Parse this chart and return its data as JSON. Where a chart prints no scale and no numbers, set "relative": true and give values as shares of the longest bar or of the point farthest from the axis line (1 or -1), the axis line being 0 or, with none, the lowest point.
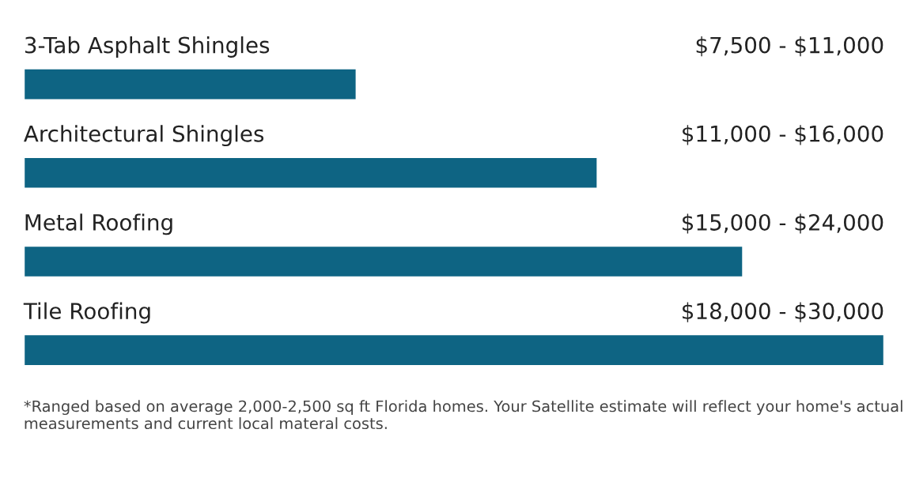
{
  "chart_data": {
    "type": "bar",
    "orientation": "horizontal",
    "relative": true,
    "categories": [
      "3-Tab Asphalt Shingles",
      "Architectural Shingles",
      "Metal Roofing",
      "Tile Roofing"
    ],
    "values": [
      0.387,
      0.667,
      0.836,
      1
    ],
    "color": "#0e6483",
    "annotations": [
      "$7,500 - $11,000",
      "$11,000 - $16,000",
      "$15,000 - $24,000",
      "$18,000 - $30,000",
      "*Ranged based on average 2,000-2,500 sq ft Florida homes. Your Satellite estimate will reflect your home's actual measurements and current local materal costs."
    ]
  }
}
